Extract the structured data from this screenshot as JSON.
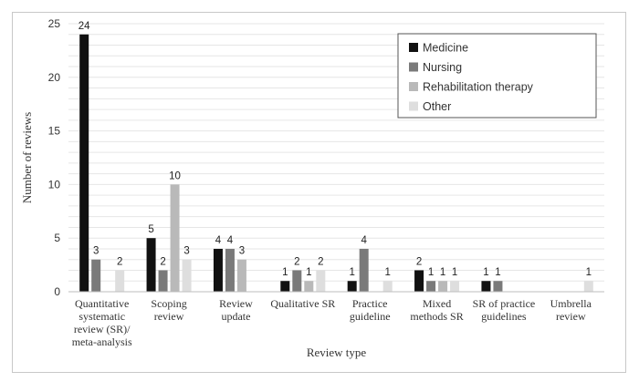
{
  "chart_data": {
    "type": "bar",
    "title": "",
    "xlabel": "Review type",
    "ylabel": "Number of reviews",
    "ylim": [
      0,
      25
    ],
    "yticks": [
      0,
      5,
      10,
      15,
      20,
      25
    ],
    "grid": true,
    "legend_position": "top-right",
    "categories": [
      [
        "Quantitative",
        "systematic",
        "review (SR)/",
        "meta-analysis"
      ],
      [
        "Scoping",
        "review"
      ],
      [
        "Review",
        "update"
      ],
      [
        "Qualitative SR"
      ],
      [
        "Practice",
        "guideline"
      ],
      [
        "Mixed",
        "methods SR"
      ],
      [
        "SR of practice",
        "guidelines"
      ],
      [
        "Umbrella",
        "review"
      ]
    ],
    "series": [
      {
        "name": "Medicine",
        "color": "#111111",
        "values": [
          24,
          5,
          4,
          1,
          1,
          2,
          1,
          0
        ]
      },
      {
        "name": "Nursing",
        "color": "#7a7a7a",
        "values": [
          3,
          2,
          4,
          2,
          4,
          1,
          1,
          0
        ]
      },
      {
        "name": "Rehabilitation therapy",
        "color": "#b9b9b9",
        "values": [
          0,
          10,
          3,
          1,
          0,
          1,
          0,
          0
        ]
      },
      {
        "name": "Other",
        "color": "#dedede",
        "values": [
          2,
          3,
          0,
          2,
          1,
          1,
          0,
          1
        ]
      }
    ]
  }
}
